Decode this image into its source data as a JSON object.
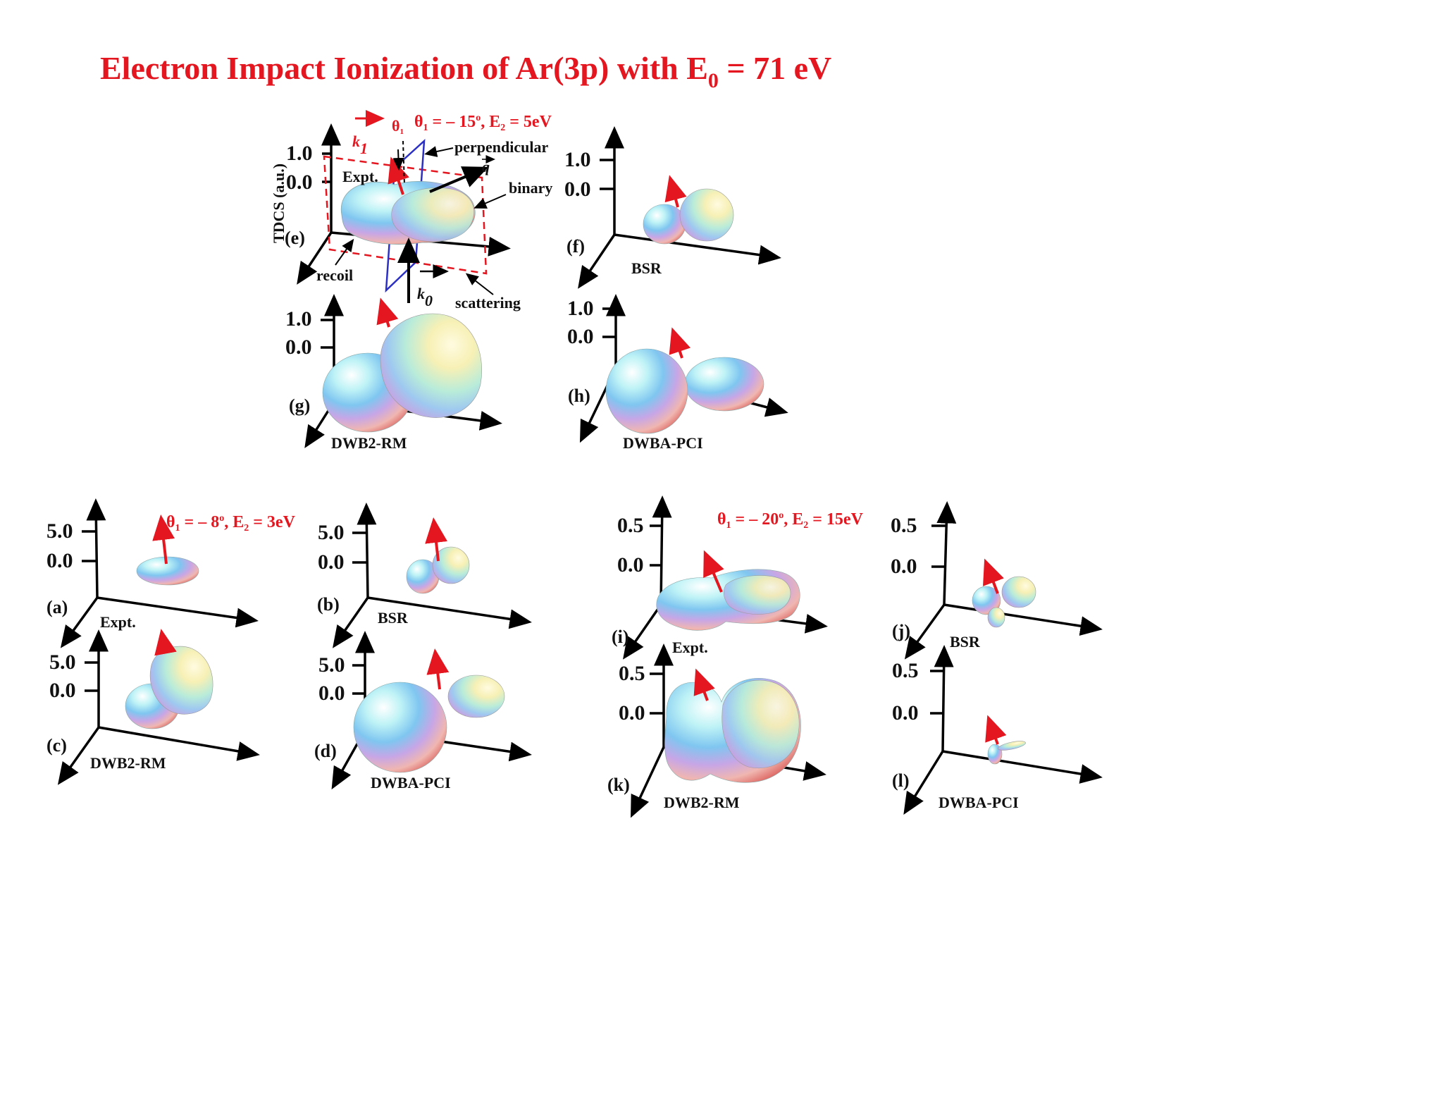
{
  "title": {
    "main": "Electron Impact Ionization of Ar(3p) with E",
    "sub": "0",
    "tail": " = 71 eV"
  },
  "ylabel": "TDCS (a.u.)",
  "groups": {
    "top": {
      "theta_sym": "θ",
      "theta_sub": "1",
      "theta_val": " = – 15",
      "deg": "o",
      "e_sym": ", E",
      "e_sub": "2",
      "e_val": " = 5eV"
    },
    "left": {
      "theta_sym": "θ",
      "theta_sub": "1",
      "theta_val": " = – 8",
      "deg": "o",
      "e_sym": ", E",
      "e_sub": "2",
      "e_val": " = 3eV"
    },
    "right": {
      "theta_sym": "θ",
      "theta_sub": "1",
      "theta_val": " = – 20",
      "deg": "o",
      "e_sym": ", E",
      "e_sub": "2",
      "e_val": " = 15eV"
    }
  },
  "panels": {
    "e": {
      "label": "(e)",
      "model": "Expt.",
      "tick_hi": "1.0",
      "tick_lo": "0.0"
    },
    "f": {
      "label": "(f)",
      "model": "BSR",
      "tick_hi": "1.0",
      "tick_lo": "0.0"
    },
    "g": {
      "label": "(g)",
      "model": "DWB2-RM",
      "tick_hi": "1.0",
      "tick_lo": "0.0"
    },
    "h": {
      "label": "(h)",
      "model": "DWBA-PCI",
      "tick_hi": "1.0",
      "tick_lo": "0.0"
    },
    "a": {
      "label": "(a)",
      "model": "Expt.",
      "tick_hi": "5.0",
      "tick_lo": "0.0"
    },
    "b": {
      "label": "(b)",
      "model": "BSR",
      "tick_hi": "5.0",
      "tick_lo": "0.0"
    },
    "c": {
      "label": "(c)",
      "model": "DWB2-RM",
      "tick_hi": "5.0",
      "tick_lo": "0.0"
    },
    "d": {
      "label": "(d)",
      "model": "DWBA-PCI",
      "tick_hi": "5.0",
      "tick_lo": "0.0"
    },
    "i": {
      "label": "(i)",
      "model": "Expt.",
      "tick_hi": "0.5",
      "tick_lo": "0.0"
    },
    "j": {
      "label": "(j)",
      "model": "BSR",
      "tick_hi": "0.5",
      "tick_lo": "0.0"
    },
    "k": {
      "label": "(k)",
      "model": "DWB2-RM",
      "tick_hi": "0.5",
      "tick_lo": "0.0"
    },
    "l": {
      "label": "(l)",
      "model": "DWBA-PCI",
      "tick_hi": "0.5",
      "tick_lo": "0.0"
    }
  },
  "annotations": {
    "k1": "k",
    "k1_sub": "1",
    "k0": "k",
    "k0_sub": "0",
    "q": "q",
    "theta1": "θ",
    "theta1_sub": "1",
    "perpendicular": "perpendicular",
    "binary": "binary",
    "recoil": "recoil",
    "scattering": "scattering"
  },
  "colors": {
    "title": "#e4161f",
    "k1_arrow": "#e4161f",
    "perp_plane": "#2b2fc4",
    "scatter_plane": "#e4161f"
  }
}
